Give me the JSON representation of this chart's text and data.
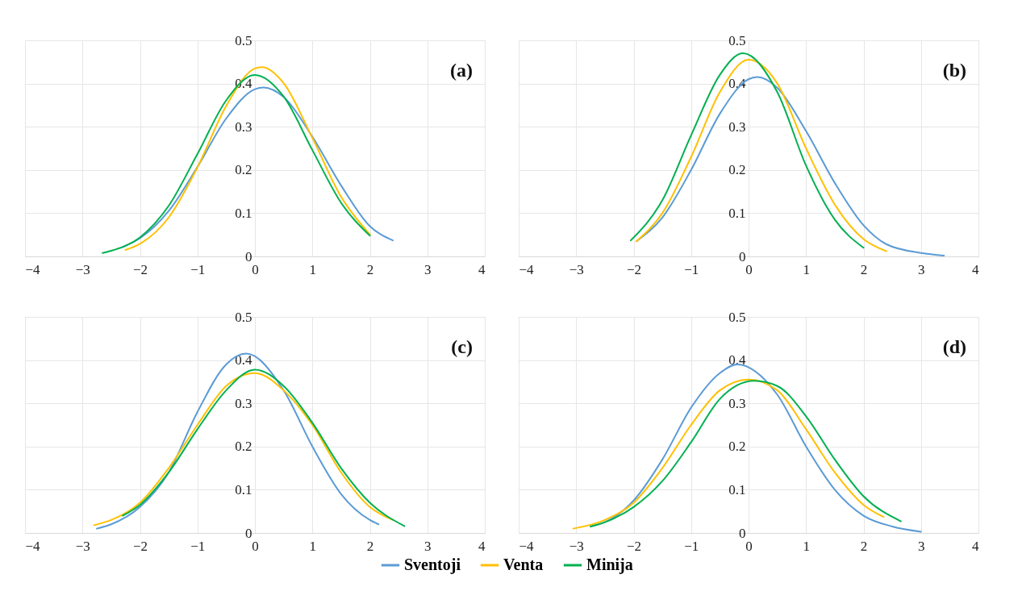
{
  "chart_data": [
    {
      "type": "line",
      "annotations": [
        "(a)"
      ],
      "xlim": [
        -4,
        4
      ],
      "ylim": [
        0,
        0.5
      ],
      "grid": true,
      "legend": "bottom",
      "line_style": "solid",
      "xticks": [
        {
          "value": -4,
          "label": "−4"
        },
        {
          "value": -3,
          "label": "−3"
        },
        {
          "value": -2,
          "label": "−2"
        },
        {
          "value": -1,
          "label": "−1"
        },
        0,
        1,
        2,
        3,
        4
      ],
      "yticks": [
        0,
        0.1,
        0.2,
        0.3,
        0.4,
        0.5
      ],
      "series": [
        {
          "name": "Sventoji",
          "color": "#5b9bd5",
          "x": [
            -2.3,
            -2,
            -1.5,
            -1,
            -0.5,
            0,
            0.15,
            0.5,
            1,
            1.5,
            2,
            2.4
          ],
          "values": [
            0.022,
            0.042,
            0.105,
            0.207,
            0.319,
            0.387,
            0.391,
            0.369,
            0.277,
            0.164,
            0.07,
            0.037
          ]
        },
        {
          "name": "Venta",
          "color": "#ffc000",
          "x": [
            -2.25,
            -2,
            -1.5,
            -1,
            -0.5,
            0,
            0.12,
            0.5,
            1,
            1.5,
            2
          ],
          "values": [
            0.015,
            0.029,
            0.09,
            0.206,
            0.348,
            0.435,
            0.438,
            0.401,
            0.274,
            0.138,
            0.051
          ]
        },
        {
          "name": "Minija",
          "color": "#00b050",
          "x": [
            -2.65,
            -2.5,
            -2,
            -1.5,
            -1,
            -0.5,
            0,
            0.5,
            1,
            1.5,
            2
          ],
          "values": [
            0.008,
            0.013,
            0.044,
            0.117,
            0.237,
            0.361,
            0.42,
            0.37,
            0.246,
            0.124,
            0.048
          ]
        }
      ]
    },
    {
      "type": "line",
      "annotations": [
        "(b)"
      ],
      "xlim": [
        -4,
        4
      ],
      "ylim": [
        0,
        0.5
      ],
      "grid": true,
      "legend": "bottom",
      "line_style": "solid",
      "xticks": [
        {
          "value": -4,
          "label": "−4"
        },
        {
          "value": -3,
          "label": "−3"
        },
        {
          "value": -2,
          "label": "−2"
        },
        {
          "value": -1,
          "label": "−1"
        },
        0,
        1,
        2,
        3,
        4
      ],
      "yticks": [
        0,
        0.1,
        0.2,
        0.3,
        0.4,
        0.5
      ],
      "series": [
        {
          "name": "Sventoji",
          "color": "#5b9bd5",
          "x": [
            -1.95,
            -1.5,
            -1,
            -0.5,
            0,
            0.15,
            0.5,
            1,
            1.5,
            2,
            2.4,
            3,
            3.4
          ],
          "values": [
            0.035,
            0.09,
            0.2,
            0.33,
            0.41,
            0.415,
            0.39,
            0.29,
            0.17,
            0.072,
            0.028,
            0.008,
            0.002
          ]
        },
        {
          "name": "Venta",
          "color": "#ffc000",
          "x": [
            -1.95,
            -1.5,
            -1,
            -0.5,
            0,
            0.5,
            1,
            1.5,
            2,
            2.4
          ],
          "values": [
            0.035,
            0.1,
            0.23,
            0.38,
            0.455,
            0.4,
            0.25,
            0.12,
            0.04,
            0.012
          ]
        },
        {
          "name": "Minija",
          "color": "#00b050",
          "x": [
            -2.05,
            -1.5,
            -1,
            -0.5,
            -0.1,
            0.5,
            1,
            1.5,
            2
          ],
          "values": [
            0.037,
            0.13,
            0.28,
            0.42,
            0.47,
            0.38,
            0.21,
            0.085,
            0.02
          ]
        }
      ]
    },
    {
      "type": "line",
      "annotations": [
        "(c)"
      ],
      "xlim": [
        -4,
        4
      ],
      "ylim": [
        0,
        0.5
      ],
      "grid": true,
      "legend": "bottom",
      "line_style": "solid",
      "xticks": [
        {
          "value": -4,
          "label": "−4"
        },
        {
          "value": -3,
          "label": "−3"
        },
        {
          "value": -2,
          "label": "−2"
        },
        {
          "value": -1,
          "label": "−1"
        },
        0,
        1,
        2,
        3,
        4
      ],
      "yticks": [
        0,
        0.1,
        0.2,
        0.3,
        0.4,
        0.5
      ],
      "series": [
        {
          "name": "Sventoji",
          "color": "#5b9bd5",
          "x": [
            -2.75,
            -2.5,
            -2,
            -1.5,
            -1,
            -0.5,
            -0.15,
            0.5,
            1,
            1.5,
            2,
            2.15
          ],
          "values": [
            0.01,
            0.02,
            0.06,
            0.14,
            0.28,
            0.39,
            0.415,
            0.33,
            0.2,
            0.09,
            0.03,
            0.02
          ]
        },
        {
          "name": "Venta",
          "color": "#ffc000",
          "x": [
            -2.8,
            -2.5,
            -2,
            -1.5,
            -1,
            -0.5,
            0,
            0.5,
            1,
            1.5,
            2,
            2.4
          ],
          "values": [
            0.018,
            0.03,
            0.07,
            0.15,
            0.25,
            0.34,
            0.37,
            0.33,
            0.25,
            0.14,
            0.06,
            0.03
          ]
        },
        {
          "name": "Minija",
          "color": "#00b050",
          "x": [
            -2.3,
            -2,
            -1.5,
            -1,
            -0.5,
            0,
            0.5,
            1,
            1.5,
            2,
            2.6
          ],
          "values": [
            0.04,
            0.065,
            0.14,
            0.24,
            0.33,
            0.378,
            0.34,
            0.255,
            0.15,
            0.07,
            0.016
          ]
        }
      ]
    },
    {
      "type": "line",
      "annotations": [
        "(d)"
      ],
      "xlim": [
        -4,
        4
      ],
      "ylim": [
        0,
        0.5
      ],
      "grid": true,
      "legend": "bottom",
      "line_style": "solid",
      "xticks": [
        {
          "value": -4,
          "label": "−4"
        },
        {
          "value": -3,
          "label": "−3"
        },
        {
          "value": -2,
          "label": "−2"
        },
        {
          "value": -1,
          "label": "−1"
        },
        0,
        1,
        2,
        3,
        4
      ],
      "yticks": [
        0,
        0.1,
        0.2,
        0.3,
        0.4,
        0.5
      ],
      "series": [
        {
          "name": "Sventoji",
          "color": "#5b9bd5",
          "x": [
            -2.75,
            -2.5,
            -2,
            -1.5,
            -1,
            -0.5,
            -0.2,
            0.5,
            1,
            1.5,
            2,
            2.5,
            3
          ],
          "values": [
            0.015,
            0.025,
            0.075,
            0.17,
            0.29,
            0.37,
            0.39,
            0.32,
            0.2,
            0.1,
            0.04,
            0.015,
            0.003
          ]
        },
        {
          "name": "Venta",
          "color": "#ffc000",
          "x": [
            -3.05,
            -2.5,
            -2,
            -1.5,
            -1,
            -0.5,
            0,
            0.5,
            1,
            1.5,
            2,
            2.35
          ],
          "values": [
            0.01,
            0.03,
            0.07,
            0.15,
            0.25,
            0.33,
            0.355,
            0.33,
            0.24,
            0.14,
            0.065,
            0.037
          ]
        },
        {
          "name": "Minija",
          "color": "#00b050",
          "x": [
            -2.75,
            -2.5,
            -2,
            -1.5,
            -1,
            -0.5,
            0.1,
            0.5,
            1,
            1.5,
            2,
            2.65
          ],
          "values": [
            0.015,
            0.025,
            0.06,
            0.12,
            0.21,
            0.31,
            0.352,
            0.34,
            0.27,
            0.17,
            0.085,
            0.027
          ]
        }
      ]
    }
  ]
}
